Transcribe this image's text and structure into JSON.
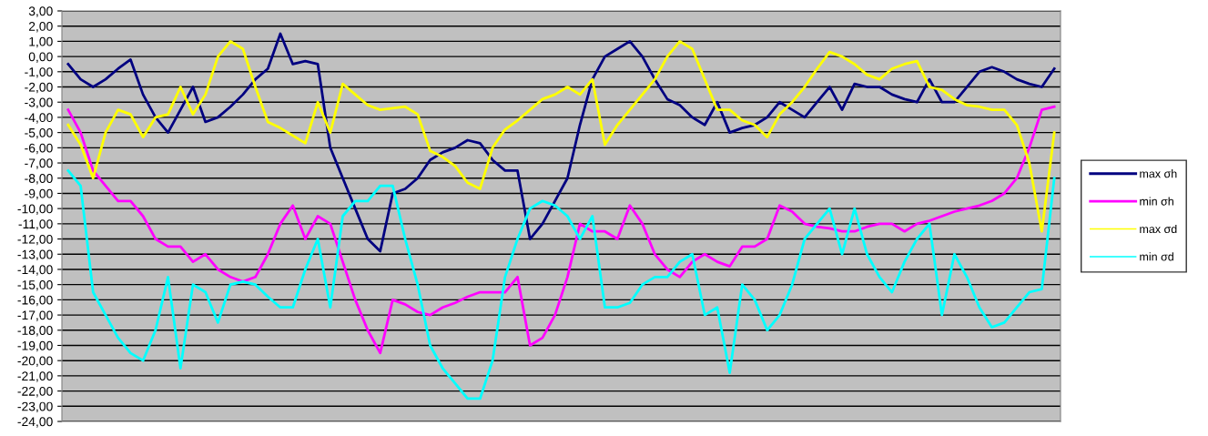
{
  "chart_data": {
    "type": "line",
    "categories": [
      null,
      null,
      null,
      null,
      null,
      null,
      null,
      null,
      null,
      null,
      null,
      null,
      null,
      null,
      null,
      null,
      null,
      null,
      null,
      null,
      null,
      null,
      null,
      null,
      null,
      null,
      null,
      null,
      null,
      null,
      null,
      null,
      null,
      null,
      null,
      null,
      null,
      null,
      null,
      null,
      null,
      null,
      null,
      null,
      null,
      null,
      null,
      null,
      null,
      null,
      null,
      null,
      null,
      null,
      null,
      null,
      null,
      null,
      null,
      null,
      null,
      null,
      null,
      null,
      null,
      null,
      null,
      null,
      null,
      null,
      null,
      null,
      null,
      null,
      null,
      null,
      null,
      null,
      null,
      null
    ],
    "ylim": [
      -24,
      3
    ],
    "yticks": [
      {
        "value": 3,
        "label": "3,00"
      },
      {
        "value": 2,
        "label": "2,00"
      },
      {
        "value": 1,
        "label": "1,00"
      },
      {
        "value": 0,
        "label": "0,00"
      },
      {
        "value": -1,
        "label": "-1,00"
      },
      {
        "value": -2,
        "label": "-2,00"
      },
      {
        "value": -3,
        "label": "-3,00"
      },
      {
        "value": -4,
        "label": "-4,00"
      },
      {
        "value": -5,
        "label": "-5,00"
      },
      {
        "value": -6,
        "label": "-6,00"
      },
      {
        "value": -7,
        "label": "-7,00"
      },
      {
        "value": -8,
        "label": "-8,00"
      },
      {
        "value": -9,
        "label": "-9,00"
      },
      {
        "value": -10,
        "label": "-10,00"
      },
      {
        "value": -11,
        "label": "-11,00"
      },
      {
        "value": -12,
        "label": "-12,00"
      },
      {
        "value": -13,
        "label": "-13,00"
      },
      {
        "value": -14,
        "label": "-14,00"
      },
      {
        "value": -15,
        "label": "-15,00"
      },
      {
        "value": -16,
        "label": "-16,00"
      },
      {
        "value": -17,
        "label": "-17,00"
      },
      {
        "value": -18,
        "label": "-18,00"
      },
      {
        "value": -19,
        "label": "-19,00"
      },
      {
        "value": -20,
        "label": "-20,00"
      },
      {
        "value": -21,
        "label": "-21,00"
      },
      {
        "value": -22,
        "label": "-22,00"
      },
      {
        "value": -23,
        "label": "-23,00"
      },
      {
        "value": -24,
        "label": "-24,00"
      }
    ],
    "grid": "y",
    "legend": "right",
    "marker": "none",
    "line_style": "solid",
    "series": [
      {
        "name": "max σh",
        "color": "#000080",
        "values": [
          -0.5,
          -1.5,
          -2,
          -1.5,
          -0.8,
          -0.2,
          -2.5,
          -4,
          -5,
          -3.5,
          -2,
          -4.3,
          -4,
          -3.3,
          -2.5,
          -1.5,
          -0.8,
          1.5,
          -0.5,
          -0.3,
          -0.5,
          -6,
          -8,
          -10,
          -12,
          -12.8,
          -9,
          -8.7,
          -8,
          -6.8,
          -6.3,
          -6,
          -5.5,
          -5.7,
          -6.8,
          -7.5,
          -7.5,
          -12,
          -11,
          -9.5,
          -8,
          -4.5,
          -1.5,
          0,
          0.5,
          1,
          0,
          -1.5,
          -2.8,
          -3.2,
          -4,
          -4.5,
          -3,
          -5,
          -4.7,
          -4.5,
          -4,
          -3,
          -3.5,
          -4,
          -3,
          -2,
          -3.5,
          -1.8,
          -2,
          -2,
          -2.5,
          -2.8,
          -3,
          -1.5,
          -3,
          -3,
          -2,
          -1,
          -0.7,
          -1,
          -1.5,
          -1.8,
          -2,
          -0.8
        ]
      },
      {
        "name": "min σh",
        "color": "#ff00ff",
        "values": [
          -3.5,
          -5,
          -7.5,
          -8.5,
          -9.5,
          -9.5,
          -10.5,
          -12,
          -12.5,
          -12.5,
          -13.5,
          -13,
          -14,
          -14.5,
          -14.8,
          -14.5,
          -13,
          -11,
          -9.8,
          -12,
          -10.5,
          -11,
          -13.5,
          -16,
          -18,
          -19.5,
          -16,
          -16.3,
          -16.8,
          -17,
          -16.5,
          -16.2,
          -15.8,
          -15.5,
          -15.5,
          -15.5,
          -14.5,
          -19,
          -18.5,
          -17,
          -14.5,
          -11,
          -11.5,
          -11.5,
          -12,
          -9.8,
          -11,
          -13,
          -14,
          -14.5,
          -13.5,
          -13,
          -13.5,
          -13.8,
          -12.5,
          -12.5,
          -12,
          -9.8,
          -10.2,
          -11,
          -11.2,
          -11.3,
          -11.5,
          -11.5,
          -11.2,
          -11,
          -11,
          -11.5,
          -11,
          -10.8,
          -10.5,
          -10.2,
          -10,
          -9.8,
          -9.5,
          -9,
          -8,
          -6,
          -3.5,
          -3.3
        ]
      },
      {
        "name": "max σd",
        "color": "#ffff00",
        "values": [
          -4.5,
          -5.8,
          -8,
          -5,
          -3.5,
          -3.8,
          -5.3,
          -4,
          -3.8,
          -2,
          -3.8,
          -2.5,
          0,
          1,
          0.5,
          -2,
          -4.3,
          -4.7,
          -5.2,
          -5.7,
          -3,
          -5,
          -1.8,
          -2.5,
          -3.2,
          -3.5,
          -3.4,
          -3.3,
          -3.8,
          -6.2,
          -6.6,
          -7.2,
          -8.3,
          -8.7,
          -6,
          -4.8,
          -4.2,
          -3.5,
          -2.8,
          -2.5,
          -2,
          -2.5,
          -1.5,
          -5.8,
          -4.5,
          -3.5,
          -2.5,
          -1.5,
          0,
          1,
          0.5,
          -1.5,
          -3.5,
          -3.5,
          -4.2,
          -4.5,
          -5.3,
          -3.8,
          -3,
          -2,
          -0.8,
          0.3,
          0,
          -0.5,
          -1.2,
          -1.5,
          -0.8,
          -0.5,
          -0.3,
          -2,
          -2.2,
          -2.8,
          -3.2,
          -3.3,
          -3.5,
          -3.5,
          -4.5,
          -7,
          -11.5,
          -5
        ]
      },
      {
        "name": "min σd",
        "color": "#00ffff",
        "values": [
          -7.5,
          -8.5,
          -15.5,
          -17,
          -18.5,
          -19.5,
          -20,
          -18,
          -14.5,
          -20.5,
          -15,
          -15.5,
          -17.5,
          -15,
          -14.8,
          -15,
          -15.8,
          -16.5,
          -16.5,
          -14,
          -12,
          -16.5,
          -10.5,
          -9.5,
          -9.5,
          -8.5,
          -8.5,
          -12,
          -15,
          -19,
          -20.5,
          -21.5,
          -22.5,
          -22.5,
          -20,
          -14.5,
          -12,
          -10,
          -9.5,
          -9.8,
          -10.5,
          -12,
          -10.5,
          -16.5,
          -16.5,
          -16.2,
          -15,
          -14.5,
          -14.5,
          -13.5,
          -13,
          -17,
          -16.5,
          -20.8,
          -15,
          -16,
          -18,
          -17,
          -15,
          -12,
          -11,
          -10,
          -13,
          -10,
          -13,
          -14.5,
          -15.5,
          -13.5,
          -12,
          -11,
          -17,
          -13,
          -14.5,
          -16.5,
          -17.8,
          -17.5,
          -16.5,
          -15.5,
          -15.3,
          -8
        ]
      }
    ]
  }
}
